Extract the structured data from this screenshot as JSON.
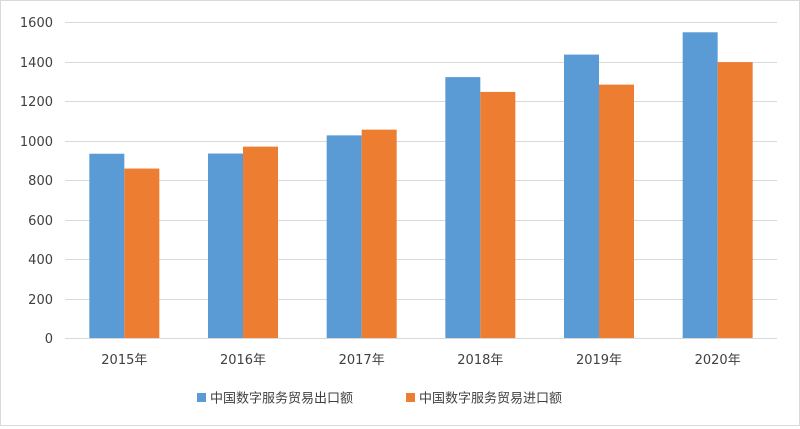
{
  "chart_data": {
    "type": "bar",
    "categories": [
      "2015年",
      "2016年",
      "2017年",
      "2018年",
      "2019年",
      "2020年"
    ],
    "series": [
      {
        "name": "中国数字服务贸易出口额",
        "color": "#5b9bd5",
        "values": [
          933,
          934,
          1026,
          1321,
          1435,
          1548
        ]
      },
      {
        "name": "中国数字服务贸易进口额",
        "color": "#ed7d31",
        "values": [
          858,
          969,
          1055,
          1246,
          1283,
          1397
        ]
      }
    ],
    "yticks": [
      0,
      200,
      400,
      600,
      800,
      1000,
      1200,
      1400,
      1600
    ],
    "ylim": [
      0,
      1600
    ],
    "grid": true,
    "gridline_color": "#d9d9d9",
    "legend_position": "bottom"
  }
}
